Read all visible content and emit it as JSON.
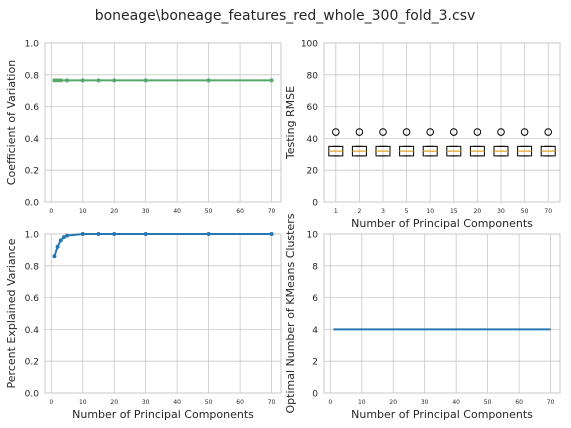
{
  "figure": {
    "suptitle": "boneage\\boneage_features_red_whole_300_fold_3.csv"
  },
  "colors": {
    "green": "#55a868",
    "blue": "#2778b2",
    "grid": "#c8c8c8",
    "box": "#000000",
    "median": "#e0a020"
  },
  "chart_data": [
    {
      "type": "line",
      "panel": "top-left",
      "xlabel": "",
      "ylabel": "Coefficient of Variation",
      "x": [
        1,
        2,
        3,
        5,
        10,
        15,
        20,
        30,
        50,
        70
      ],
      "y": [
        0.765,
        0.765,
        0.765,
        0.765,
        0.765,
        0.765,
        0.765,
        0.765,
        0.765,
        0.765
      ],
      "xlim": [
        -2,
        73
      ],
      "ylim": [
        0,
        1
      ],
      "xticks": [
        0,
        10,
        20,
        30,
        40,
        50,
        60,
        70
      ],
      "yticks": [
        0.0,
        0.2,
        0.4,
        0.6,
        0.8,
        1.0
      ],
      "color": "green",
      "grid": true
    },
    {
      "type": "box",
      "panel": "top-right",
      "xlabel": "Number of Principal Components",
      "ylabel": "Testing RMSE",
      "categories": [
        "1",
        "2",
        "3",
        "5",
        "10",
        "15",
        "20",
        "30",
        "50",
        "70"
      ],
      "boxes": [
        {
          "q1": 29,
          "median": 32,
          "q3": 35,
          "whislo": 29,
          "whishi": 35,
          "outliers": [
            44
          ]
        },
        {
          "q1": 29,
          "median": 32,
          "q3": 35,
          "whislo": 29,
          "whishi": 35,
          "outliers": [
            44
          ]
        },
        {
          "q1": 29,
          "median": 32,
          "q3": 35,
          "whislo": 29,
          "whishi": 35,
          "outliers": [
            44
          ]
        },
        {
          "q1": 29,
          "median": 32,
          "q3": 35,
          "whislo": 29,
          "whishi": 35,
          "outliers": [
            44
          ]
        },
        {
          "q1": 29,
          "median": 32,
          "q3": 35,
          "whislo": 29,
          "whishi": 35,
          "outliers": [
            44
          ]
        },
        {
          "q1": 29,
          "median": 32,
          "q3": 35,
          "whislo": 29,
          "whishi": 35,
          "outliers": [
            44
          ]
        },
        {
          "q1": 29,
          "median": 32,
          "q3": 35,
          "whislo": 29,
          "whishi": 35,
          "outliers": [
            44
          ]
        },
        {
          "q1": 29,
          "median": 32,
          "q3": 35,
          "whislo": 29,
          "whishi": 35,
          "outliers": [
            44
          ]
        },
        {
          "q1": 29,
          "median": 32,
          "q3": 35,
          "whislo": 29,
          "whishi": 35,
          "outliers": [
            44
          ]
        },
        {
          "q1": 29,
          "median": 32,
          "q3": 35,
          "whislo": 29,
          "whishi": 35,
          "outliers": [
            44
          ]
        }
      ],
      "ylim": [
        0,
        100
      ],
      "yticks": [
        0,
        20,
        40,
        60,
        80,
        100
      ],
      "grid": true
    },
    {
      "type": "line",
      "panel": "bottom-left",
      "xlabel": "Number of Principal Components",
      "ylabel": "Percent Explained Variance",
      "x": [
        1,
        2,
        3,
        4,
        5,
        10,
        15,
        20,
        30,
        50,
        70
      ],
      "y": [
        0.86,
        0.92,
        0.96,
        0.98,
        0.99,
        1.0,
        1.0,
        1.0,
        1.0,
        1.0,
        1.0
      ],
      "xlim": [
        -2,
        73
      ],
      "ylim": [
        0,
        1
      ],
      "xticks": [
        0,
        10,
        20,
        30,
        40,
        50,
        60,
        70
      ],
      "yticks": [
        0.0,
        0.2,
        0.4,
        0.6,
        0.8,
        1.0
      ],
      "color": "blue",
      "grid": true
    },
    {
      "type": "line",
      "panel": "bottom-right",
      "xlabel": "Number of Principal Components",
      "ylabel": "Optimal Number of KMeans Clusters",
      "x": [
        1,
        70
      ],
      "y": [
        4,
        4
      ],
      "xlim": [
        -2,
        73
      ],
      "ylim": [
        0,
        10
      ],
      "xticks": [
        0,
        10,
        20,
        30,
        40,
        50,
        60,
        70
      ],
      "yticks": [
        0,
        2,
        4,
        6,
        8,
        10
      ],
      "color": "blue",
      "grid": true
    }
  ]
}
